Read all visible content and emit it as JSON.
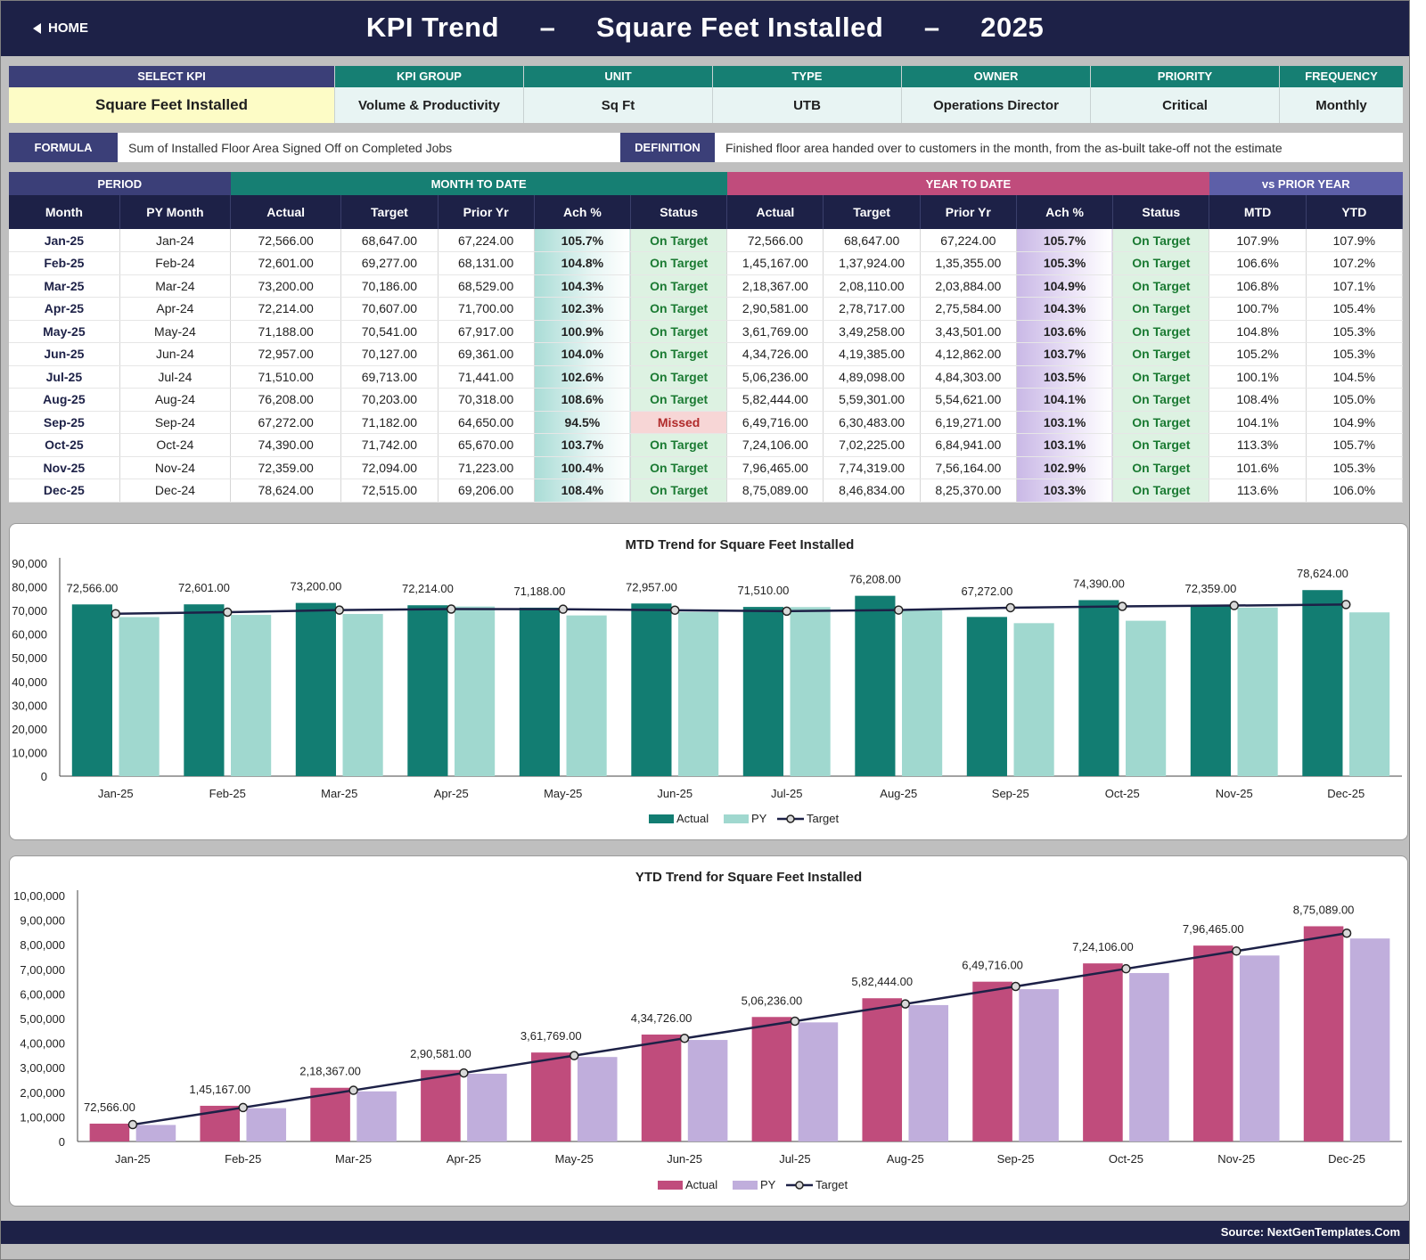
{
  "header": {
    "home_label": "HOME",
    "title_parts": [
      "KPI Trend",
      "–",
      "Square Feet Installed",
      "–",
      "2025"
    ]
  },
  "info": [
    {
      "key": "select_kpi",
      "label": "SELECT KPI",
      "value": "Square Feet Installed"
    },
    {
      "key": "kpi_group",
      "label": "KPI GROUP",
      "value": "Volume & Productivity"
    },
    {
      "key": "unit",
      "label": "UNIT",
      "value": "Sq Ft"
    },
    {
      "key": "type",
      "label": "TYPE",
      "value": "UTB"
    },
    {
      "key": "owner",
      "label": "OWNER",
      "value": "Operations Director"
    },
    {
      "key": "priority",
      "label": "PRIORITY",
      "value": "Critical"
    },
    {
      "key": "frequency",
      "label": "FREQUENCY",
      "value": "Monthly"
    }
  ],
  "formula": {
    "label": "FORMULA",
    "text": "Sum of Installed Floor Area Signed Off on Completed Jobs"
  },
  "definition": {
    "label": "DEFINITION",
    "text": "Finished floor area handed over to customers in the month, from the as-built take-off not the estimate"
  },
  "table": {
    "groups": [
      "PERIOD",
      "MONTH TO DATE",
      "YEAR TO DATE",
      "vs PRIOR YEAR"
    ],
    "group_colors": [
      "#3b3f78",
      "#167f73",
      "#c04c7c",
      "#5d5fa8"
    ],
    "columns": [
      "Month",
      "PY Month",
      "Actual",
      "Target",
      "Prior Yr",
      "Ach %",
      "Status",
      "Actual",
      "Target",
      "Prior Yr",
      "Ach %",
      "Status",
      "MTD",
      "YTD"
    ],
    "rows": [
      [
        "Jan-25",
        "Jan-24",
        "72,566.00",
        "68,647.00",
        "67,224.00",
        "105.7%",
        "On Target",
        "72,566.00",
        "68,647.00",
        "67,224.00",
        "105.7%",
        "On Target",
        "107.9%",
        "107.9%"
      ],
      [
        "Feb-25",
        "Feb-24",
        "72,601.00",
        "69,277.00",
        "68,131.00",
        "104.8%",
        "On Target",
        "1,45,167.00",
        "1,37,924.00",
        "1,35,355.00",
        "105.3%",
        "On Target",
        "106.6%",
        "107.2%"
      ],
      [
        "Mar-25",
        "Mar-24",
        "73,200.00",
        "70,186.00",
        "68,529.00",
        "104.3%",
        "On Target",
        "2,18,367.00",
        "2,08,110.00",
        "2,03,884.00",
        "104.9%",
        "On Target",
        "106.8%",
        "107.1%"
      ],
      [
        "Apr-25",
        "Apr-24",
        "72,214.00",
        "70,607.00",
        "71,700.00",
        "102.3%",
        "On Target",
        "2,90,581.00",
        "2,78,717.00",
        "2,75,584.00",
        "104.3%",
        "On Target",
        "100.7%",
        "105.4%"
      ],
      [
        "May-25",
        "May-24",
        "71,188.00",
        "70,541.00",
        "67,917.00",
        "100.9%",
        "On Target",
        "3,61,769.00",
        "3,49,258.00",
        "3,43,501.00",
        "103.6%",
        "On Target",
        "104.8%",
        "105.3%"
      ],
      [
        "Jun-25",
        "Jun-24",
        "72,957.00",
        "70,127.00",
        "69,361.00",
        "104.0%",
        "On Target",
        "4,34,726.00",
        "4,19,385.00",
        "4,12,862.00",
        "103.7%",
        "On Target",
        "105.2%",
        "105.3%"
      ],
      [
        "Jul-25",
        "Jul-24",
        "71,510.00",
        "69,713.00",
        "71,441.00",
        "102.6%",
        "On Target",
        "5,06,236.00",
        "4,89,098.00",
        "4,84,303.00",
        "103.5%",
        "On Target",
        "100.1%",
        "104.5%"
      ],
      [
        "Aug-25",
        "Aug-24",
        "76,208.00",
        "70,203.00",
        "70,318.00",
        "108.6%",
        "On Target",
        "5,82,444.00",
        "5,59,301.00",
        "5,54,621.00",
        "104.1%",
        "On Target",
        "108.4%",
        "105.0%"
      ],
      [
        "Sep-25",
        "Sep-24",
        "67,272.00",
        "71,182.00",
        "64,650.00",
        "94.5%",
        "Missed",
        "6,49,716.00",
        "6,30,483.00",
        "6,19,271.00",
        "103.1%",
        "On Target",
        "104.1%",
        "104.9%"
      ],
      [
        "Oct-25",
        "Oct-24",
        "74,390.00",
        "71,742.00",
        "65,670.00",
        "103.7%",
        "On Target",
        "7,24,106.00",
        "7,02,225.00",
        "6,84,941.00",
        "103.1%",
        "On Target",
        "113.3%",
        "105.7%"
      ],
      [
        "Nov-25",
        "Nov-24",
        "72,359.00",
        "72,094.00",
        "71,223.00",
        "100.4%",
        "On Target",
        "7,96,465.00",
        "7,74,319.00",
        "7,56,164.00",
        "102.9%",
        "On Target",
        "101.6%",
        "105.3%"
      ],
      [
        "Dec-25",
        "Dec-24",
        "78,624.00",
        "72,515.00",
        "69,206.00",
        "108.4%",
        "On Target",
        "8,75,089.00",
        "8,46,834.00",
        "8,25,370.00",
        "103.3%",
        "On Target",
        "113.6%",
        "106.0%"
      ]
    ]
  },
  "chart_data": [
    {
      "type": "bar",
      "title": "MTD Trend for Square Feet Installed",
      "categories": [
        "Jan-25",
        "Feb-25",
        "Mar-25",
        "Apr-25",
        "May-25",
        "Jun-25",
        "Jul-25",
        "Aug-25",
        "Sep-25",
        "Oct-25",
        "Nov-25",
        "Dec-25"
      ],
      "series": [
        {
          "name": "Actual",
          "kind": "bar",
          "color": "#127d72",
          "values": [
            72566,
            72601,
            73200,
            72214,
            71188,
            72957,
            71510,
            76208,
            67272,
            74390,
            72359,
            78624
          ]
        },
        {
          "name": "PY",
          "kind": "bar",
          "color": "#a0d8cf",
          "values": [
            67224,
            68131,
            68529,
            71700,
            67917,
            69361,
            71441,
            70318,
            64650,
            65670,
            71223,
            69206
          ]
        },
        {
          "name": "Target",
          "kind": "line",
          "color": "#1d2147",
          "values": [
            68647,
            69277,
            70186,
            70607,
            70541,
            70127,
            69713,
            70203,
            71182,
            71742,
            72094,
            72515
          ]
        }
      ],
      "data_labels": [
        "72,566.00",
        "72,601.00",
        "73,200.00",
        "72,214.00",
        "71,188.00",
        "72,957.00",
        "71,510.00",
        "76,208.00",
        "67,272.00",
        "74,390.00",
        "72,359.00",
        "78,624.00"
      ],
      "y_ticks": [
        "0",
        "10,000",
        "20,000",
        "30,000",
        "40,000",
        "50,000",
        "60,000",
        "70,000",
        "80,000",
        "90,000"
      ],
      "ylim": [
        0,
        90000
      ],
      "legend": "bottom"
    },
    {
      "type": "bar",
      "title": "YTD Trend for Square Feet Installed",
      "categories": [
        "Jan-25",
        "Feb-25",
        "Mar-25",
        "Apr-25",
        "May-25",
        "Jun-25",
        "Jul-25",
        "Aug-25",
        "Sep-25",
        "Oct-25",
        "Nov-25",
        "Dec-25"
      ],
      "series": [
        {
          "name": "Actual",
          "kind": "bar",
          "color": "#c04c7c",
          "values": [
            72566,
            145167,
            218367,
            290581,
            361769,
            434726,
            506236,
            582444,
            649716,
            724106,
            796465,
            875089
          ]
        },
        {
          "name": "PY",
          "kind": "bar",
          "color": "#c0aedc",
          "values": [
            67224,
            135355,
            203884,
            275584,
            343501,
            412862,
            484303,
            554621,
            619271,
            684941,
            756164,
            825370
          ]
        },
        {
          "name": "Target",
          "kind": "line",
          "color": "#1d2147",
          "values": [
            68647,
            137924,
            208110,
            278717,
            349258,
            419385,
            489098,
            559301,
            630483,
            702225,
            774319,
            846834
          ]
        }
      ],
      "data_labels": [
        "72,566.00",
        "1,45,167.00",
        "2,18,367.00",
        "2,90,581.00",
        "3,61,769.00",
        "4,34,726.00",
        "5,06,236.00",
        "5,82,444.00",
        "6,49,716.00",
        "7,24,106.00",
        "7,96,465.00",
        "8,75,089.00"
      ],
      "y_ticks": [
        "0",
        "1,00,000",
        "2,00,000",
        "3,00,000",
        "4,00,000",
        "5,00,000",
        "6,00,000",
        "7,00,000",
        "8,00,000",
        "9,00,000",
        "10,00,000"
      ],
      "ylim": [
        0,
        1000000
      ],
      "legend": "bottom"
    }
  ],
  "footer": {
    "source": "Source: NextGenTemplates.Com"
  }
}
